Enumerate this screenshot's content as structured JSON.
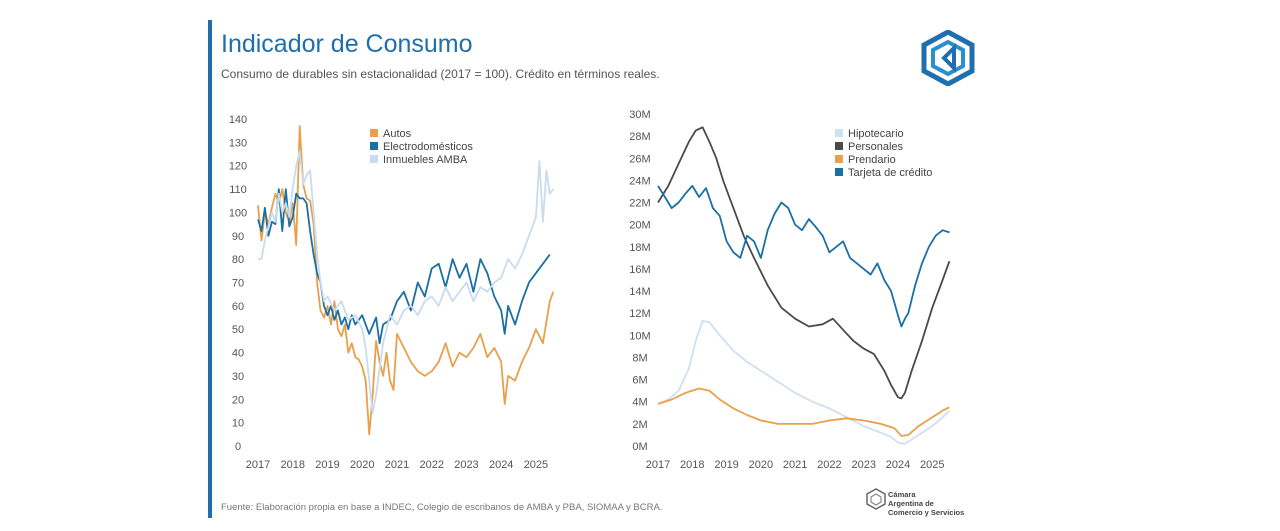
{
  "header": {
    "title": "Indicador de Consumo",
    "subtitle": "Consumo de durables sin estacionalidad (2017 = 100). Crédito en términos reales."
  },
  "footer": {
    "source": "Fuente: Elaboración propia en base a INDEC, Colegio de escribanos de AMBA y PBA, SIOMAA y BCRA.",
    "org_line1": "Cámara",
    "org_line2": "Argentina de",
    "org_line3": "Comercio y Servicios"
  },
  "colors": {
    "brand": "#1f6fae",
    "autos": "#e8a04a",
    "electro": "#1a6fa3",
    "inmuebles": "#c9dcef",
    "hipotecario": "#cfe0f0",
    "personales": "#4a4a4a",
    "prendario": "#e8a04a",
    "tarjeta": "#1a6fa3"
  },
  "chart_data": [
    {
      "type": "line",
      "yticks": [
        "140",
        "130",
        "120",
        "110",
        "100",
        "90",
        "80",
        "70",
        "60",
        "50",
        "40",
        "30",
        "20",
        "10",
        "0"
      ],
      "xticks": [
        "2017",
        "2018",
        "2019",
        "2020",
        "2021",
        "2022",
        "2023",
        "2024",
        "2025"
      ],
      "ylim": [
        0,
        140
      ],
      "xlim": [
        2017,
        2025.75
      ],
      "legend_position": "top-left",
      "series": [
        {
          "name": "Autos",
          "color_key": "autos",
          "x": [
            2017,
            2017.1,
            2017.2,
            2017.3,
            2017.4,
            2017.5,
            2017.6,
            2017.7,
            2017.8,
            2017.9,
            2018,
            2018.1,
            2018.2,
            2018.3,
            2018.4,
            2018.5,
            2018.6,
            2018.7,
            2018.8,
            2018.9,
            2019,
            2019.1,
            2019.2,
            2019.3,
            2019.4,
            2019.5,
            2019.6,
            2019.7,
            2019.8,
            2019.9,
            2020,
            2020.1,
            2020.2,
            2020.3,
            2020.4,
            2020.5,
            2020.6,
            2020.7,
            2020.8,
            2020.9,
            2021,
            2021.2,
            2021.4,
            2021.6,
            2021.8,
            2022,
            2022.2,
            2022.4,
            2022.6,
            2022.8,
            2023,
            2023.2,
            2023.4,
            2023.6,
            2023.8,
            2024,
            2024.1,
            2024.2,
            2024.4,
            2024.6,
            2024.8,
            2025,
            2025.2,
            2025.4,
            2025.5
          ],
          "values": [
            103,
            88,
            100,
            95,
            102,
            108,
            104,
            110,
            100,
            96,
            104,
            86,
            137,
            112,
            106,
            105,
            95,
            70,
            58,
            55,
            60,
            52,
            62,
            50,
            47,
            52,
            40,
            44,
            38,
            37,
            34,
            28,
            5,
            22,
            45,
            36,
            30,
            40,
            28,
            24,
            48,
            42,
            36,
            32,
            30,
            32,
            36,
            44,
            34,
            40,
            38,
            42,
            48,
            38,
            42,
            36,
            18,
            30,
            28,
            36,
            42,
            50,
            44,
            62,
            66
          ]
        },
        {
          "name": "Electrodomésticos",
          "color_key": "electro",
          "x": [
            2017,
            2017.1,
            2017.2,
            2017.3,
            2017.4,
            2017.5,
            2017.6,
            2017.7,
            2017.8,
            2017.9,
            2018,
            2018.1,
            2018.2,
            2018.3,
            2018.4,
            2018.5,
            2018.6,
            2018.7,
            2018.8,
            2018.9,
            2019,
            2019.1,
            2019.2,
            2019.3,
            2019.4,
            2019.5,
            2019.6,
            2019.7,
            2019.8,
            2019.9,
            2020,
            2020.2,
            2020.4,
            2020.5,
            2020.6,
            2020.8,
            2021,
            2021.2,
            2021.4,
            2021.6,
            2021.8,
            2022,
            2022.2,
            2022.4,
            2022.6,
            2022.8,
            2023,
            2023.2,
            2023.4,
            2023.6,
            2023.8,
            2024,
            2024.1,
            2024.2,
            2024.4,
            2024.6,
            2024.8,
            2025,
            2025.2,
            2025.4
          ],
          "values": [
            97,
            92,
            102,
            90,
            96,
            95,
            110,
            92,
            110,
            94,
            98,
            108,
            106,
            106,
            104,
            92,
            82,
            74,
            70,
            60,
            56,
            60,
            54,
            58,
            52,
            55,
            50,
            56,
            52,
            54,
            56,
            48,
            55,
            44,
            52,
            54,
            62,
            66,
            58,
            70,
            64,
            76,
            78,
            68,
            80,
            72,
            78,
            66,
            80,
            74,
            64,
            58,
            48,
            60,
            52,
            62,
            70,
            74,
            78,
            82
          ]
        },
        {
          "name": "Inmuebles AMBA",
          "color_key": "inmuebles",
          "x": [
            2017,
            2017.1,
            2017.2,
            2017.3,
            2017.4,
            2017.5,
            2017.6,
            2017.7,
            2017.8,
            2017.9,
            2018,
            2018.1,
            2018.2,
            2018.3,
            2018.4,
            2018.5,
            2018.6,
            2018.7,
            2018.8,
            2018.9,
            2019,
            2019.2,
            2019.4,
            2019.6,
            2019.8,
            2020,
            2020.1,
            2020.2,
            2020.3,
            2020.4,
            2020.6,
            2020.8,
            2021,
            2021.2,
            2021.4,
            2021.6,
            2021.8,
            2022,
            2022.2,
            2022.4,
            2022.6,
            2022.8,
            2023,
            2023.2,
            2023.4,
            2023.6,
            2023.8,
            2024,
            2024.2,
            2024.4,
            2024.6,
            2024.8,
            2025,
            2025.1,
            2025.2,
            2025.3,
            2025.4,
            2025.5
          ],
          "values": [
            80,
            80,
            88,
            94,
            100,
            96,
            108,
            100,
            104,
            98,
            110,
            120,
            126,
            112,
            116,
            118,
            100,
            82,
            70,
            62,
            64,
            58,
            62,
            54,
            56,
            50,
            42,
            28,
            14,
            22,
            44,
            56,
            52,
            58,
            60,
            56,
            62,
            64,
            60,
            68,
            62,
            66,
            70,
            62,
            68,
            66,
            70,
            72,
            80,
            76,
            82,
            90,
            98,
            122,
            96,
            118,
            108,
            110
          ]
        }
      ]
    },
    {
      "type": "line",
      "yticks": [
        "30M",
        "28M",
        "26M",
        "24M",
        "22M",
        "20M",
        "18M",
        "16M",
        "14M",
        "12M",
        "10M",
        "8M",
        "6M",
        "4M",
        "2M",
        "0M"
      ],
      "xticks": [
        "2017",
        "2018",
        "2019",
        "2020",
        "2021",
        "2022",
        "2023",
        "2024",
        "2025"
      ],
      "ylim": [
        0,
        30
      ],
      "xlim": [
        2017,
        2025.75
      ],
      "legend_position": "top-left",
      "series": [
        {
          "name": "Hipotecario",
          "color_key": "hipotecario",
          "x": [
            2017,
            2017.3,
            2017.6,
            2017.9,
            2018.1,
            2018.3,
            2018.5,
            2018.8,
            2019.2,
            2019.6,
            2020,
            2020.5,
            2021,
            2021.5,
            2022,
            2022.5,
            2023,
            2023.5,
            2023.8,
            2024,
            2024.2,
            2024.4,
            2024.7,
            2025,
            2025.3,
            2025.5
          ],
          "values": [
            3.8,
            4.2,
            5.0,
            7.0,
            9.5,
            11.3,
            11.2,
            10.0,
            8.6,
            7.6,
            6.8,
            5.8,
            4.8,
            4.0,
            3.4,
            2.6,
            1.8,
            1.2,
            0.8,
            0.3,
            0.2,
            0.6,
            1.2,
            1.8,
            2.6,
            3.2
          ]
        },
        {
          "name": "Personales",
          "color_key": "personales",
          "x": [
            2017,
            2017.3,
            2017.6,
            2017.9,
            2018.1,
            2018.3,
            2018.5,
            2018.7,
            2018.9,
            2019.2,
            2019.5,
            2019.8,
            2020.2,
            2020.6,
            2021,
            2021.4,
            2021.8,
            2022.1,
            2022.4,
            2022.7,
            2023,
            2023.3,
            2023.6,
            2023.8,
            2024,
            2024.1,
            2024.2,
            2024.4,
            2024.7,
            2025,
            2025.3,
            2025.5
          ],
          "values": [
            22.0,
            23.5,
            25.5,
            27.5,
            28.5,
            28.8,
            27.5,
            26.0,
            24.0,
            21.5,
            19.0,
            17.0,
            14.5,
            12.5,
            11.5,
            10.8,
            11.0,
            11.5,
            10.5,
            9.5,
            8.8,
            8.3,
            6.8,
            5.5,
            4.4,
            4.3,
            4.8,
            6.8,
            9.5,
            12.5,
            15.0,
            16.7
          ]
        },
        {
          "name": "Prendario",
          "color_key": "prendario",
          "x": [
            2017,
            2017.4,
            2017.8,
            2018.2,
            2018.5,
            2018.8,
            2019.2,
            2019.6,
            2020,
            2020.5,
            2021,
            2021.5,
            2022,
            2022.5,
            2023,
            2023.5,
            2023.9,
            2024.1,
            2024.3,
            2024.6,
            2025,
            2025.3,
            2025.5
          ],
          "values": [
            3.8,
            4.2,
            4.8,
            5.2,
            5.0,
            4.2,
            3.4,
            2.8,
            2.3,
            2.0,
            2.0,
            2.0,
            2.3,
            2.5,
            2.3,
            2.0,
            1.6,
            0.9,
            1.0,
            1.8,
            2.6,
            3.2,
            3.5
          ]
        },
        {
          "name": "Tarjeta de crédito",
          "color_key": "tarjeta",
          "x": [
            2017,
            2017.2,
            2017.4,
            2017.6,
            2017.8,
            2018,
            2018.2,
            2018.4,
            2018.6,
            2018.8,
            2019,
            2019.2,
            2019.4,
            2019.6,
            2019.8,
            2020,
            2020.2,
            2020.4,
            2020.6,
            2020.8,
            2021,
            2021.2,
            2021.4,
            2021.6,
            2021.8,
            2022,
            2022.2,
            2022.4,
            2022.6,
            2022.8,
            2023,
            2023.2,
            2023.4,
            2023.6,
            2023.8,
            2024,
            2024.1,
            2024.2,
            2024.3,
            2024.5,
            2024.7,
            2024.9,
            2025.1,
            2025.3,
            2025.5
          ],
          "values": [
            23.5,
            22.5,
            21.5,
            22.0,
            22.8,
            23.5,
            22.5,
            23.3,
            21.5,
            20.8,
            18.5,
            17.5,
            17.0,
            19.0,
            18.5,
            17.0,
            19.5,
            21.0,
            22.0,
            21.5,
            20.0,
            19.5,
            20.5,
            19.8,
            19.0,
            17.5,
            18.0,
            18.5,
            17.0,
            16.5,
            16.0,
            15.5,
            16.5,
            15.0,
            14.0,
            11.8,
            10.8,
            11.5,
            12.0,
            14.5,
            16.5,
            18.0,
            19.0,
            19.5,
            19.3
          ]
        }
      ]
    }
  ]
}
